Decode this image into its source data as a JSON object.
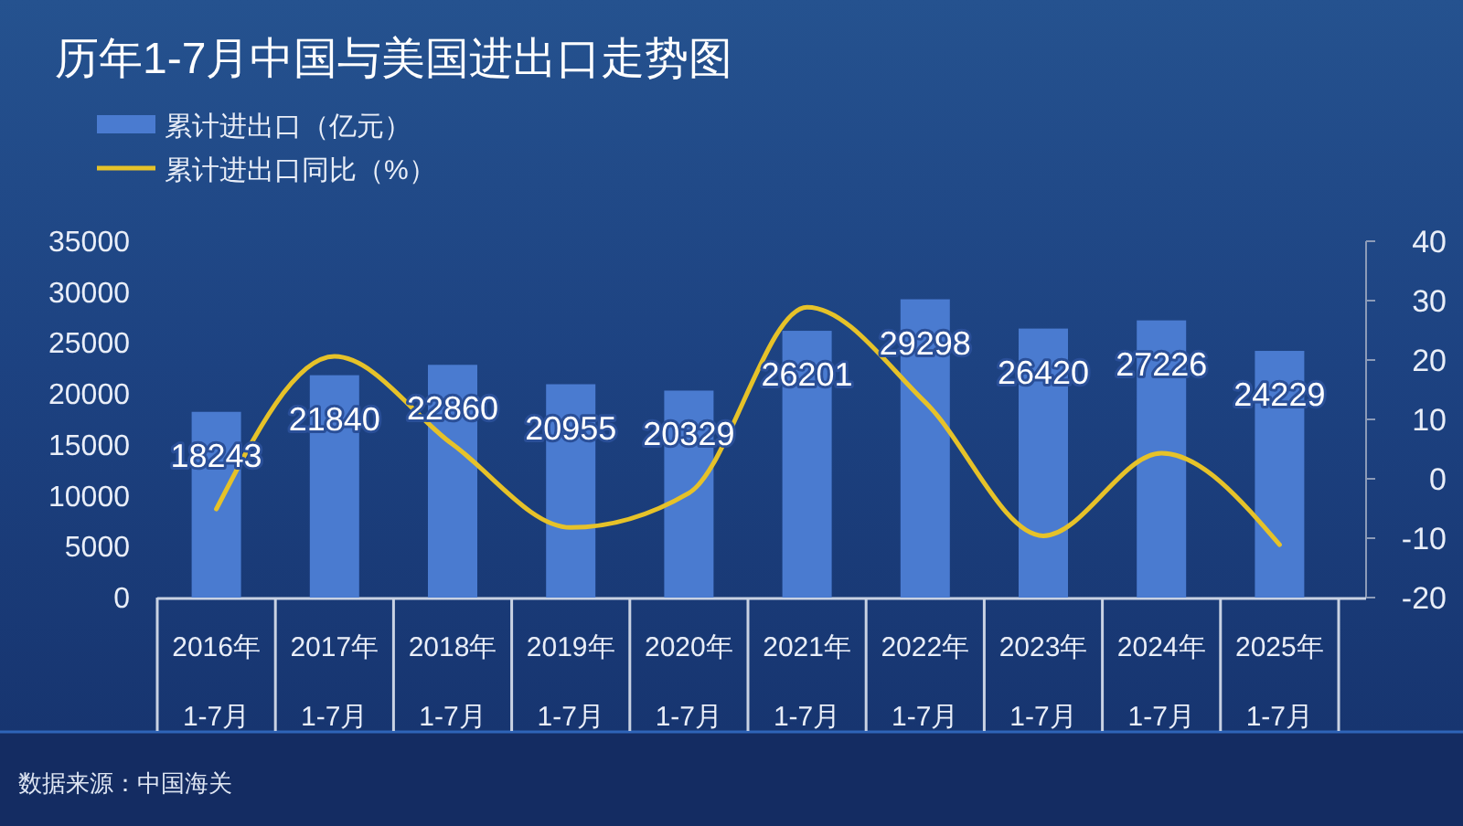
{
  "chart_data": {
    "type": "bar",
    "title": "历年1-7月中国与美国进出口走势图",
    "categories": [
      "2016年\n1-7月",
      "2017年\n1-7月",
      "2018年\n1-7月",
      "2019年\n1-7月",
      "2020年\n1-7月",
      "2021年\n1-7月",
      "2022年\n1-7月",
      "2023年\n1-7月",
      "2024年\n1-7月",
      "2025年\n1-7月"
    ],
    "series": [
      {
        "name": "累计进出口（亿元）",
        "color": "#4a7bd0",
        "values": [
          18243,
          21840,
          22860,
          20955,
          20329,
          26201,
          29298,
          26420,
          27226,
          24229
        ],
        "value_labels": [
          "18243",
          "21840",
          "22860",
          "20955",
          "20329",
          "26201",
          "29298",
          "26420",
          "27226",
          "24229"
        ]
      },
      {
        "name": "累计进出口同比（%）",
        "type": "line",
        "axis": "y2",
        "color": "#e6c229",
        "values": [
          -5.1,
          20.6,
          5.8,
          -8.2,
          -2.4,
          28.9,
          12.9,
          -9.6,
          4.3,
          -11.1
        ]
      }
    ],
    "ylim": [
      0,
      35000
    ],
    "yticks": [
      0,
      5000,
      10000,
      15000,
      20000,
      25000,
      30000,
      35000
    ],
    "y2lim": [
      -20,
      40
    ],
    "y2ticks": [
      -20,
      -10,
      0,
      10,
      20,
      30,
      40
    ],
    "legend": "top left",
    "annotations": [
      "数据来源：中国海关"
    ]
  }
}
